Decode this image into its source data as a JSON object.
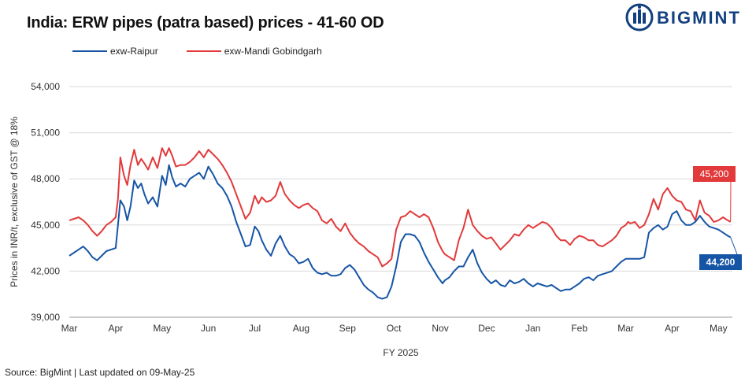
{
  "header": {
    "title": "India: ERW pipes (patra based) prices - 41-60 OD",
    "brand": "BIGMINT"
  },
  "footer": {
    "source": "Source: BigMint  | Last updated on 09-May-25"
  },
  "colors": {
    "raipur": "#1655a6",
    "mandi": "#e2393a",
    "brand": "#123f7f",
    "grid": "#d9d9d9"
  },
  "chart_data": {
    "type": "line",
    "title": "India: ERW pipes (patra based) prices - 41-60 OD",
    "xlabel": "FY 2025",
    "ylabel": "Prices in INR/t, exclusive of GST @ 18%",
    "ylim": [
      39000,
      54000
    ],
    "xlim": [
      0,
      14.3
    ],
    "yticks": [
      39000,
      42000,
      45000,
      48000,
      51000,
      54000
    ],
    "ytick_labels": [
      "39,000",
      "42,000",
      "45,000",
      "48,000",
      "51,000",
      "54,000"
    ],
    "categories": [
      "Mar",
      "Apr",
      "May",
      "Jun",
      "Jul",
      "Aug",
      "Sep",
      "Oct",
      "Nov",
      "Dec",
      "Jan",
      "Feb",
      "Mar",
      "Apr",
      "May"
    ],
    "grid": "horizontal",
    "legend_position": "top-left",
    "series": [
      {
        "name": "exw-Raipur",
        "end_label": "44,200",
        "points": [
          [
            0.0,
            43000
          ],
          [
            0.1,
            43200
          ],
          [
            0.2,
            43400
          ],
          [
            0.3,
            43600
          ],
          [
            0.4,
            43300
          ],
          [
            0.5,
            42900
          ],
          [
            0.6,
            42700
          ],
          [
            0.7,
            43000
          ],
          [
            0.8,
            43300
          ],
          [
            0.9,
            43400
          ],
          [
            1.0,
            43500
          ],
          [
            1.05,
            45000
          ],
          [
            1.1,
            46600
          ],
          [
            1.18,
            46200
          ],
          [
            1.25,
            45300
          ],
          [
            1.32,
            46200
          ],
          [
            1.4,
            47900
          ],
          [
            1.48,
            47400
          ],
          [
            1.55,
            47700
          ],
          [
            1.62,
            47000
          ],
          [
            1.7,
            46400
          ],
          [
            1.8,
            46800
          ],
          [
            1.9,
            46200
          ],
          [
            2.0,
            48200
          ],
          [
            2.08,
            47600
          ],
          [
            2.15,
            48900
          ],
          [
            2.22,
            48100
          ],
          [
            2.3,
            47500
          ],
          [
            2.4,
            47700
          ],
          [
            2.5,
            47500
          ],
          [
            2.6,
            48000
          ],
          [
            2.7,
            48200
          ],
          [
            2.8,
            48400
          ],
          [
            2.9,
            48000
          ],
          [
            3.0,
            48800
          ],
          [
            3.1,
            48300
          ],
          [
            3.2,
            47700
          ],
          [
            3.3,
            47400
          ],
          [
            3.4,
            46900
          ],
          [
            3.5,
            46200
          ],
          [
            3.6,
            45200
          ],
          [
            3.7,
            44400
          ],
          [
            3.8,
            43600
          ],
          [
            3.9,
            43700
          ],
          [
            4.0,
            44900
          ],
          [
            4.08,
            44600
          ],
          [
            4.15,
            44000
          ],
          [
            4.25,
            43400
          ],
          [
            4.35,
            43000
          ],
          [
            4.45,
            43800
          ],
          [
            4.55,
            44300
          ],
          [
            4.65,
            43600
          ],
          [
            4.75,
            43100
          ],
          [
            4.85,
            42900
          ],
          [
            4.95,
            42500
          ],
          [
            5.05,
            42600
          ],
          [
            5.15,
            42800
          ],
          [
            5.25,
            42200
          ],
          [
            5.35,
            41900
          ],
          [
            5.45,
            41800
          ],
          [
            5.55,
            41900
          ],
          [
            5.65,
            41700
          ],
          [
            5.75,
            41700
          ],
          [
            5.85,
            41800
          ],
          [
            5.95,
            42200
          ],
          [
            6.05,
            42400
          ],
          [
            6.15,
            42100
          ],
          [
            6.25,
            41600
          ],
          [
            6.35,
            41100
          ],
          [
            6.45,
            40800
          ],
          [
            6.55,
            40600
          ],
          [
            6.65,
            40300
          ],
          [
            6.75,
            40200
          ],
          [
            6.85,
            40300
          ],
          [
            6.95,
            41000
          ],
          [
            7.05,
            42300
          ],
          [
            7.15,
            43900
          ],
          [
            7.25,
            44400
          ],
          [
            7.35,
            44400
          ],
          [
            7.45,
            44300
          ],
          [
            7.55,
            43900
          ],
          [
            7.65,
            43200
          ],
          [
            7.75,
            42600
          ],
          [
            7.85,
            42100
          ],
          [
            7.95,
            41600
          ],
          [
            8.05,
            41200
          ],
          [
            8.1,
            41400
          ],
          [
            8.2,
            41600
          ],
          [
            8.3,
            42000
          ],
          [
            8.4,
            42300
          ],
          [
            8.5,
            42300
          ],
          [
            8.6,
            42900
          ],
          [
            8.7,
            43400
          ],
          [
            8.8,
            42500
          ],
          [
            8.9,
            41900
          ],
          [
            9.0,
            41500
          ],
          [
            9.1,
            41200
          ],
          [
            9.2,
            41400
          ],
          [
            9.3,
            41100
          ],
          [
            9.4,
            41000
          ],
          [
            9.5,
            41400
          ],
          [
            9.6,
            41200
          ],
          [
            9.7,
            41300
          ],
          [
            9.8,
            41500
          ],
          [
            9.9,
            41200
          ],
          [
            10.0,
            41000
          ],
          [
            10.1,
            41200
          ],
          [
            10.2,
            41100
          ],
          [
            10.3,
            41000
          ],
          [
            10.4,
            41100
          ],
          [
            10.5,
            40900
          ],
          [
            10.6,
            40700
          ],
          [
            10.7,
            40800
          ],
          [
            10.8,
            40800
          ],
          [
            10.9,
            41000
          ],
          [
            11.0,
            41200
          ],
          [
            11.1,
            41500
          ],
          [
            11.2,
            41600
          ],
          [
            11.3,
            41400
          ],
          [
            11.4,
            41700
          ],
          [
            11.5,
            41800
          ],
          [
            11.6,
            41900
          ],
          [
            11.7,
            42000
          ],
          [
            11.8,
            42300
          ],
          [
            11.9,
            42600
          ],
          [
            12.0,
            42800
          ],
          [
            12.05,
            42800
          ],
          [
            12.1,
            42800
          ],
          [
            12.2,
            42800
          ],
          [
            12.3,
            42800
          ],
          [
            12.4,
            42900
          ],
          [
            12.5,
            44500
          ],
          [
            12.6,
            44800
          ],
          [
            12.7,
            45000
          ],
          [
            12.8,
            44700
          ],
          [
            12.9,
            44900
          ],
          [
            13.0,
            45700
          ],
          [
            13.1,
            45900
          ],
          [
            13.2,
            45300
          ],
          [
            13.3,
            45000
          ],
          [
            13.4,
            45000
          ],
          [
            13.5,
            45200
          ],
          [
            13.6,
            45600
          ],
          [
            13.7,
            45200
          ],
          [
            13.8,
            44900
          ],
          [
            13.9,
            44800
          ],
          [
            14.0,
            44700
          ],
          [
            14.1,
            44500
          ],
          [
            14.2,
            44300
          ],
          [
            14.26,
            44200
          ]
        ]
      },
      {
        "name": "exw-Mandi Gobindgarh",
        "end_label": "45,200",
        "points": [
          [
            0.0,
            45300
          ],
          [
            0.1,
            45400
          ],
          [
            0.2,
            45500
          ],
          [
            0.3,
            45300
          ],
          [
            0.4,
            45000
          ],
          [
            0.5,
            44600
          ],
          [
            0.6,
            44300
          ],
          [
            0.7,
            44600
          ],
          [
            0.8,
            45000
          ],
          [
            0.9,
            45200
          ],
          [
            1.0,
            45500
          ],
          [
            1.05,
            46700
          ],
          [
            1.1,
            49400
          ],
          [
            1.18,
            48200
          ],
          [
            1.25,
            47600
          ],
          [
            1.32,
            48900
          ],
          [
            1.4,
            49900
          ],
          [
            1.48,
            48900
          ],
          [
            1.55,
            49300
          ],
          [
            1.62,
            49000
          ],
          [
            1.7,
            48600
          ],
          [
            1.8,
            49400
          ],
          [
            1.9,
            48700
          ],
          [
            2.0,
            50000
          ],
          [
            2.08,
            49500
          ],
          [
            2.15,
            50000
          ],
          [
            2.22,
            49500
          ],
          [
            2.3,
            48800
          ],
          [
            2.4,
            48900
          ],
          [
            2.5,
            48900
          ],
          [
            2.6,
            49100
          ],
          [
            2.7,
            49400
          ],
          [
            2.8,
            49800
          ],
          [
            2.9,
            49400
          ],
          [
            3.0,
            49900
          ],
          [
            3.1,
            49600
          ],
          [
            3.2,
            49300
          ],
          [
            3.3,
            48900
          ],
          [
            3.4,
            48400
          ],
          [
            3.5,
            47800
          ],
          [
            3.6,
            47000
          ],
          [
            3.7,
            46200
          ],
          [
            3.8,
            45400
          ],
          [
            3.9,
            45800
          ],
          [
            4.0,
            46900
          ],
          [
            4.08,
            46400
          ],
          [
            4.15,
            46800
          ],
          [
            4.25,
            46500
          ],
          [
            4.35,
            46600
          ],
          [
            4.45,
            46900
          ],
          [
            4.55,
            47800
          ],
          [
            4.65,
            47000
          ],
          [
            4.75,
            46600
          ],
          [
            4.85,
            46300
          ],
          [
            4.95,
            46100
          ],
          [
            5.05,
            46300
          ],
          [
            5.15,
            46400
          ],
          [
            5.25,
            46100
          ],
          [
            5.35,
            45900
          ],
          [
            5.45,
            45300
          ],
          [
            5.55,
            45100
          ],
          [
            5.65,
            45400
          ],
          [
            5.75,
            44900
          ],
          [
            5.85,
            44600
          ],
          [
            5.95,
            45100
          ],
          [
            6.05,
            44500
          ],
          [
            6.15,
            44100
          ],
          [
            6.25,
            43800
          ],
          [
            6.35,
            43600
          ],
          [
            6.45,
            43300
          ],
          [
            6.55,
            43100
          ],
          [
            6.65,
            42900
          ],
          [
            6.75,
            42300
          ],
          [
            6.85,
            42500
          ],
          [
            6.95,
            42800
          ],
          [
            7.05,
            44700
          ],
          [
            7.15,
            45500
          ],
          [
            7.25,
            45600
          ],
          [
            7.35,
            45900
          ],
          [
            7.45,
            45700
          ],
          [
            7.55,
            45500
          ],
          [
            7.65,
            45700
          ],
          [
            7.75,
            45500
          ],
          [
            7.85,
            44800
          ],
          [
            7.95,
            43900
          ],
          [
            8.05,
            43300
          ],
          [
            8.1,
            43100
          ],
          [
            8.2,
            42900
          ],
          [
            8.3,
            42700
          ],
          [
            8.4,
            44000
          ],
          [
            8.5,
            44800
          ],
          [
            8.6,
            46000
          ],
          [
            8.7,
            45000
          ],
          [
            8.8,
            44600
          ],
          [
            8.9,
            44300
          ],
          [
            9.0,
            44100
          ],
          [
            9.1,
            44200
          ],
          [
            9.2,
            43800
          ],
          [
            9.3,
            43400
          ],
          [
            9.4,
            43700
          ],
          [
            9.5,
            44000
          ],
          [
            9.6,
            44400
          ],
          [
            9.7,
            44300
          ],
          [
            9.8,
            44700
          ],
          [
            9.9,
            45000
          ],
          [
            10.0,
            44800
          ],
          [
            10.1,
            45000
          ],
          [
            10.2,
            45200
          ],
          [
            10.3,
            45100
          ],
          [
            10.4,
            44800
          ],
          [
            10.5,
            44300
          ],
          [
            10.6,
            44000
          ],
          [
            10.7,
            44000
          ],
          [
            10.8,
            43700
          ],
          [
            10.9,
            44100
          ],
          [
            11.0,
            44300
          ],
          [
            11.1,
            44200
          ],
          [
            11.2,
            44000
          ],
          [
            11.3,
            44000
          ],
          [
            11.4,
            43700
          ],
          [
            11.5,
            43600
          ],
          [
            11.6,
            43800
          ],
          [
            11.7,
            44000
          ],
          [
            11.8,
            44300
          ],
          [
            11.9,
            44800
          ],
          [
            12.0,
            45000
          ],
          [
            12.05,
            45200
          ],
          [
            12.1,
            45100
          ],
          [
            12.2,
            45200
          ],
          [
            12.3,
            44800
          ],
          [
            12.4,
            45000
          ],
          [
            12.5,
            45700
          ],
          [
            12.6,
            46700
          ],
          [
            12.7,
            46000
          ],
          [
            12.8,
            47000
          ],
          [
            12.9,
            47400
          ],
          [
            13.0,
            46900
          ],
          [
            13.1,
            46600
          ],
          [
            13.2,
            46500
          ],
          [
            13.3,
            46000
          ],
          [
            13.4,
            45900
          ],
          [
            13.5,
            45300
          ],
          [
            13.6,
            46600
          ],
          [
            13.7,
            45800
          ],
          [
            13.8,
            45600
          ],
          [
            13.9,
            45200
          ],
          [
            14.0,
            45300
          ],
          [
            14.1,
            45500
          ],
          [
            14.2,
            45300
          ],
          [
            14.26,
            45200
          ]
        ]
      }
    ]
  }
}
